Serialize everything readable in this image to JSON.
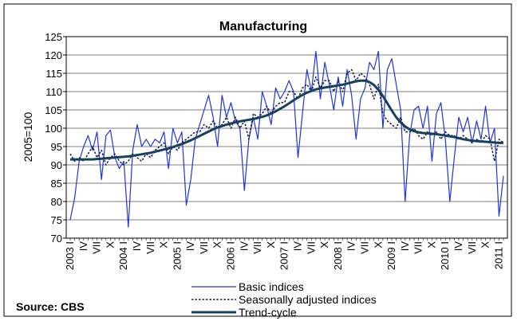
{
  "chart_data": {
    "type": "line",
    "title": "Manufacturing",
    "y_label": "2005=100",
    "source": "Source: CBS",
    "categories": [
      "2003 I",
      null,
      null,
      "IV",
      null,
      null,
      "VII",
      null,
      null,
      "X",
      null,
      null,
      "2004 I",
      null,
      null,
      "IV",
      null,
      null,
      "VII",
      null,
      null,
      "X",
      null,
      null,
      "2005 I",
      null,
      null,
      "IV",
      null,
      null,
      "VII",
      null,
      null,
      "X",
      null,
      null,
      "2006 I",
      null,
      null,
      "IV",
      null,
      null,
      "VII",
      null,
      null,
      "X",
      null,
      null,
      "2007 I",
      null,
      null,
      "IV",
      null,
      null,
      "VII",
      null,
      null,
      "X",
      null,
      null,
      "2008 I",
      null,
      null,
      "IV",
      null,
      null,
      "VII",
      null,
      null,
      "X",
      null,
      null,
      "2009 I",
      null,
      null,
      "IV",
      null,
      null,
      "VII",
      null,
      null,
      "X",
      null,
      null,
      "2010 I",
      null,
      null,
      "IV",
      null,
      null,
      "VII",
      null,
      null,
      "X",
      null,
      null,
      "2011 I",
      null
    ],
    "ylim": [
      70,
      125
    ],
    "yticks": [
      70,
      75,
      80,
      85,
      90,
      95,
      100,
      105,
      110,
      115,
      120,
      125
    ],
    "grid": true,
    "series": [
      {
        "name": "Basic indices",
        "color": "#1f35d6",
        "style": "solid",
        "values": [
          75,
          81,
          91,
          95,
          98,
          94,
          99,
          86,
          98,
          99.5,
          92,
          89,
          91,
          73,
          94,
          101,
          95,
          97,
          95,
          97,
          96,
          99,
          89,
          100,
          96,
          99,
          79,
          86,
          97,
          101,
          105,
          109,
          103,
          95,
          109,
          103,
          107,
          102,
          100,
          83,
          97,
          103,
          97,
          110,
          106,
          101,
          111,
          108,
          110,
          113,
          110,
          92,
          104,
          116,
          110,
          121,
          108,
          118,
          112,
          105,
          114,
          106,
          116,
          109,
          97,
          108,
          111,
          118,
          116,
          121,
          100,
          116,
          119,
          112,
          105,
          80,
          98,
          105,
          106,
          100,
          106,
          91,
          104,
          107,
          97,
          80,
          92,
          103,
          99,
          103,
          96,
          102,
          97,
          106,
          96,
          100,
          76,
          87
        ]
      },
      {
        "name": "Seasonally adjusted indices",
        "color": "#101848",
        "style": "dotted",
        "values": [
          93,
          91,
          92,
          91,
          93,
          95,
          92,
          94,
          90,
          92,
          93,
          91,
          90,
          91,
          93,
          92,
          91,
          93,
          92,
          94,
          95,
          96,
          93,
          95,
          94,
          96,
          97,
          98,
          99,
          99,
          101,
          100,
          102,
          100,
          101,
          103,
          100,
          103,
          100,
          102,
          97,
          104,
          103,
          104,
          106,
          104,
          106,
          107,
          107,
          110,
          110,
          108,
          111,
          112,
          110,
          114,
          111,
          113,
          113,
          110,
          113,
          110,
          115,
          116,
          113,
          115,
          114,
          112,
          108,
          112,
          104,
          102,
          101,
          100,
          103,
          99,
          99,
          100,
          98,
          97,
          99,
          98,
          99,
          97,
          99,
          98,
          98,
          97,
          98,
          97,
          96,
          97,
          96,
          98,
          97,
          91,
          97,
          96
        ]
      },
      {
        "name": "Trend-cycle",
        "color": "#17405e",
        "style": "bold",
        "values": [
          91.5,
          91.5,
          91.5,
          91.5,
          91.5,
          91.5,
          91.6,
          91.7,
          91.8,
          91.9,
          92.0,
          92.1,
          92.2,
          92.3,
          92.5,
          92.7,
          92.9,
          93.1,
          93.3,
          93.6,
          93.9,
          94.2,
          94.5,
          94.9,
          95.3,
          95.7,
          96.2,
          96.7,
          97.3,
          97.9,
          98.5,
          99.1,
          99.7,
          100.2,
          100.6,
          101.0,
          101.3,
          101.6,
          101.9,
          102.1,
          102.3,
          102.5,
          102.8,
          103.1,
          103.5,
          104.0,
          104.6,
          105.3,
          106.0,
          106.8,
          107.6,
          108.4,
          109.1,
          109.7,
          110.2,
          110.6,
          110.9,
          111.1,
          111.3,
          111.5,
          111.7,
          111.9,
          112.2,
          112.5,
          112.8,
          113.0,
          113.0,
          112.6,
          111.8,
          110.5,
          108.8,
          106.8,
          104.8,
          103.0,
          101.6,
          100.5,
          99.7,
          99.2,
          98.9,
          98.7,
          98.6,
          98.5,
          98.4,
          98.2,
          98.0,
          97.8,
          97.6,
          97.3,
          97.0,
          96.8,
          96.6,
          96.5,
          96.4,
          96.3,
          96.2,
          96.1,
          96.0,
          96.0
        ]
      }
    ]
  }
}
